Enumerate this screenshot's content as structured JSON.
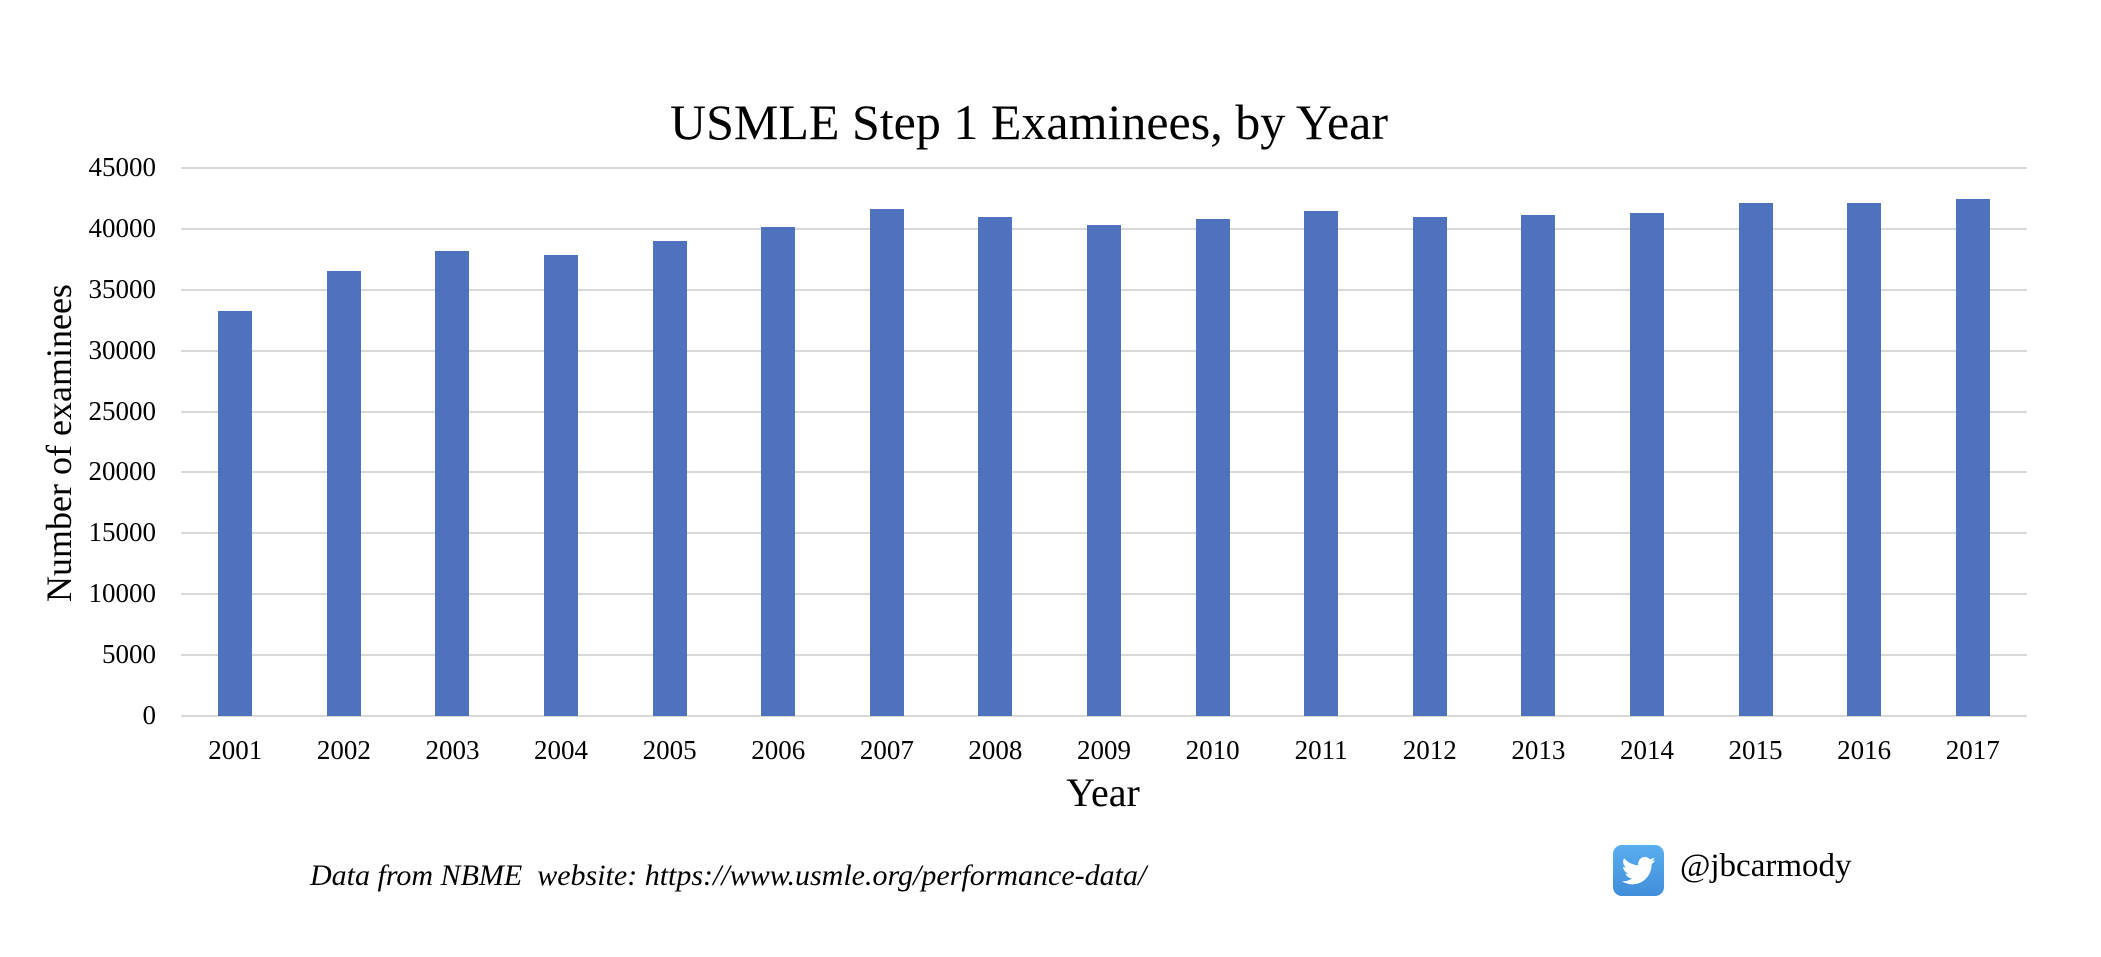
{
  "chart_data": {
    "type": "bar",
    "title": "USMLE Step 1 Examinees, by Year",
    "xlabel": "Year",
    "ylabel": "Number of examinees",
    "categories": [
      "2001",
      "2002",
      "2003",
      "2004",
      "2005",
      "2006",
      "2007",
      "2008",
      "2009",
      "2010",
      "2011",
      "2012",
      "2013",
      "2014",
      "2015",
      "2016",
      "2017"
    ],
    "values": [
      33250,
      36530,
      38180,
      37850,
      39000,
      40150,
      41630,
      40970,
      40310,
      40810,
      41460,
      40970,
      41130,
      41300,
      42120,
      42120,
      42450
    ],
    "ylim": [
      0,
      45000
    ],
    "yticks": [
      "0",
      "5000",
      "10000",
      "15000",
      "20000",
      "25000",
      "30000",
      "35000",
      "40000",
      "45000"
    ],
    "ytick_values": [
      0,
      5000,
      10000,
      15000,
      20000,
      25000,
      30000,
      35000,
      40000,
      45000
    ],
    "grid": true,
    "legend": null,
    "bar_color": "#4e72be",
    "grid_color": "#d9d9d9"
  },
  "footer": {
    "source": "Data from NBME  website: https://www.usmle.org/performance-data/",
    "handle": "@jbcarmody",
    "icon": "twitter-bird-icon"
  }
}
